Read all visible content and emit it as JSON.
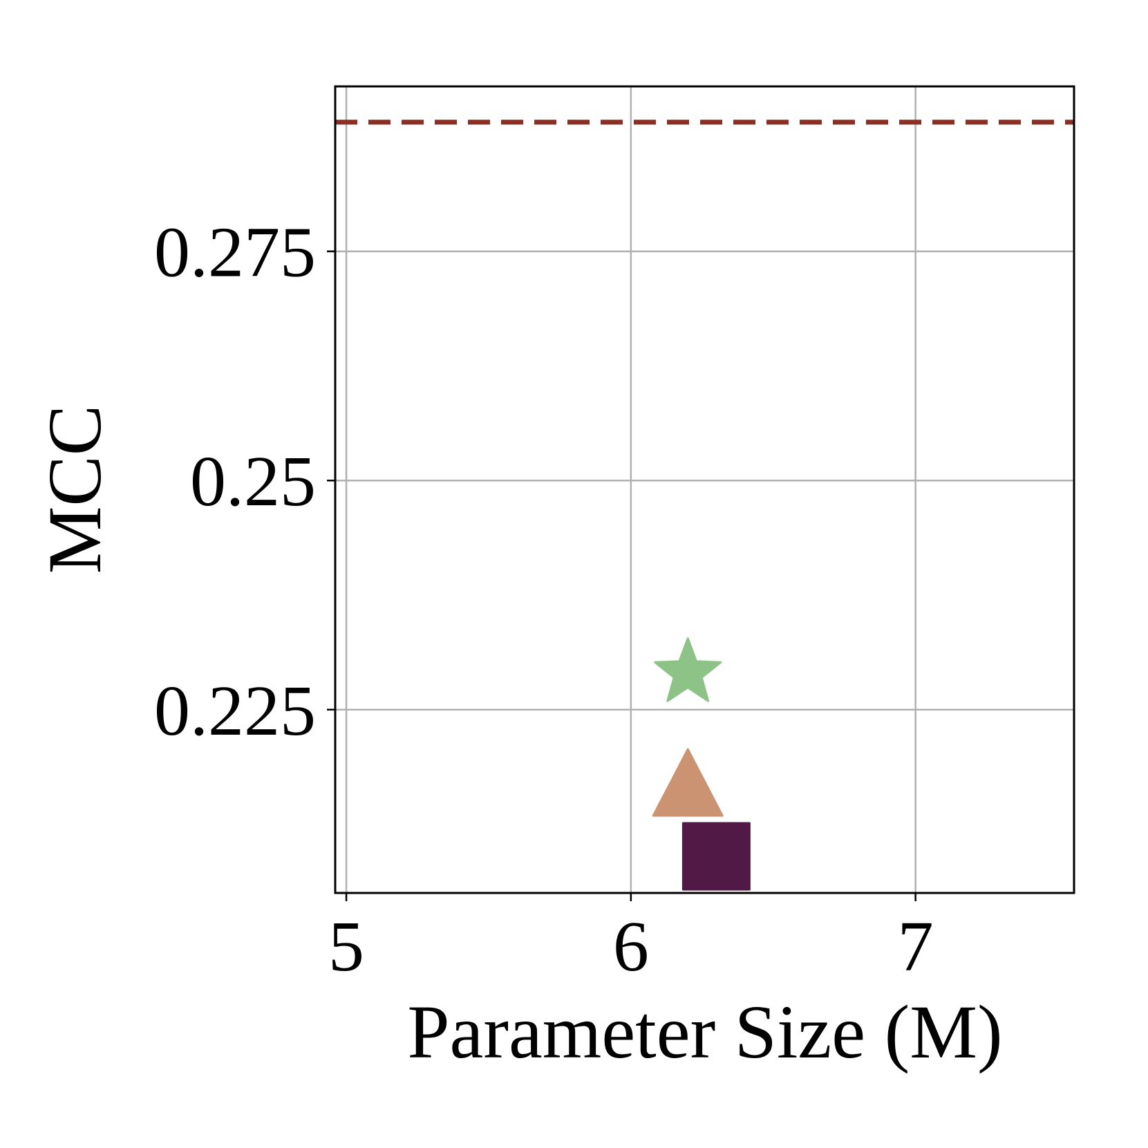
{
  "chart_data": {
    "type": "scatter",
    "xlabel": "Parameter Size (M)",
    "ylabel": "MCC",
    "xlim": [
      4.961,
      7.557
    ],
    "xticks": [
      5,
      6,
      7
    ],
    "ylim": [
      0.205,
      0.293
    ],
    "yticks": [
      0.225,
      0.25,
      0.275
    ],
    "grid": true,
    "hline": {
      "value": 0.2891,
      "color": "#8b2e24",
      "style": "dashed"
    },
    "series": [
      {
        "marker": "star",
        "color": "#8dc386",
        "x": [
          6.2
        ],
        "values": [
          0.229
        ]
      },
      {
        "marker": "triangle",
        "color": "#cc9373",
        "x": [
          6.2
        ],
        "values": [
          0.216
        ]
      },
      {
        "marker": "square",
        "color": "#511945",
        "x": [
          6.3
        ],
        "values": [
          0.209
        ]
      }
    ]
  }
}
